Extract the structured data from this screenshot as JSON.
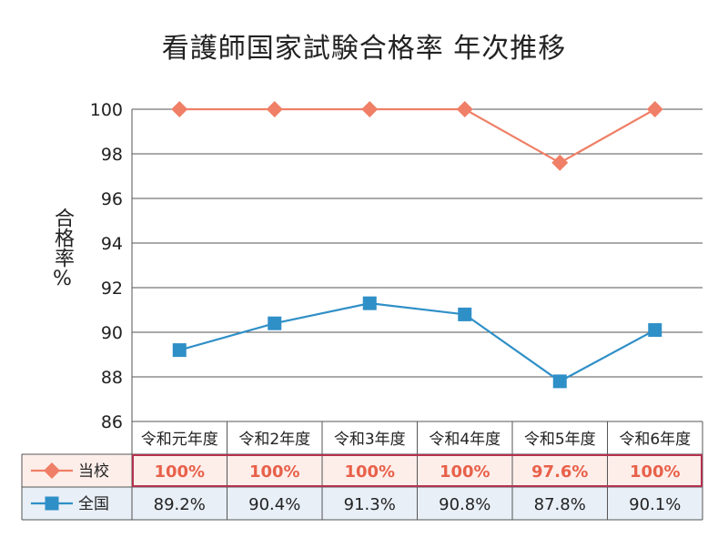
{
  "chart_data": {
    "type": "line",
    "title": "看護師国家試験合格率 年次推移",
    "ylabel": "合格率%",
    "xlabel": "",
    "ylim": [
      86,
      100
    ],
    "yticks": [
      86,
      88,
      90,
      92,
      94,
      96,
      98,
      100
    ],
    "categories": [
      "令和元年度",
      "令和2年度",
      "令和3年度",
      "令和4年度",
      "令和5年度",
      "令和6年度"
    ],
    "grid": true,
    "legend": "table-left",
    "series": [
      {
        "name": "当校",
        "marker": "diamond",
        "color": "#ef7f66",
        "values": [
          100,
          100,
          100,
          100,
          97.6,
          100
        ],
        "table_labels": [
          "100%",
          "100%",
          "100%",
          "100%",
          "97.6%",
          "100%"
        ]
      },
      {
        "name": "全国",
        "marker": "square",
        "color": "#2f8fc7",
        "values": [
          89.2,
          90.4,
          91.3,
          90.8,
          87.8,
          90.1
        ],
        "table_labels": [
          "89.2%",
          "90.4%",
          "91.3%",
          "90.8%",
          "87.8%",
          "90.1%"
        ]
      }
    ],
    "colors": {
      "school_row_bg": "#fdeeea",
      "school_row_border": "#b5314f",
      "school_text": "#e8614a",
      "national_row_bg": "#e8eff7",
      "grid": "#555555"
    }
  }
}
